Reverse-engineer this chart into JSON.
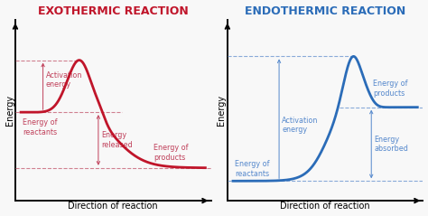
{
  "exo_title": "EXOTHERMIC REACTION",
  "endo_title": "ENDOTHERMIC REACTION",
  "exo_color": "#c0152a",
  "endo_color": "#2b6cb8",
  "annotation_color_exo": "#c0405a",
  "annotation_color_endo": "#5588cc",
  "dashed_color_exo": "#d08090",
  "dashed_color_endo": "#8aaad8",
  "bg_color": "#f8f8f8",
  "xlabel": "Direction of reaction",
  "ylabel": "Energy",
  "exo_labels": {
    "activation": "Activation\nenergy",
    "reactants": "Energy of\nreactants",
    "released": "Energy\nreleased",
    "products": "Energy of\nproducts"
  },
  "endo_labels": {
    "activation": "Activation\nenergy",
    "reactants": "Energy of\nreactants",
    "absorbed": "Energy\nabsorbed",
    "products": "Energy of\nproducts"
  },
  "title_fontsize": 9,
  "label_fontsize": 5.8,
  "axis_label_fontsize": 7.0
}
